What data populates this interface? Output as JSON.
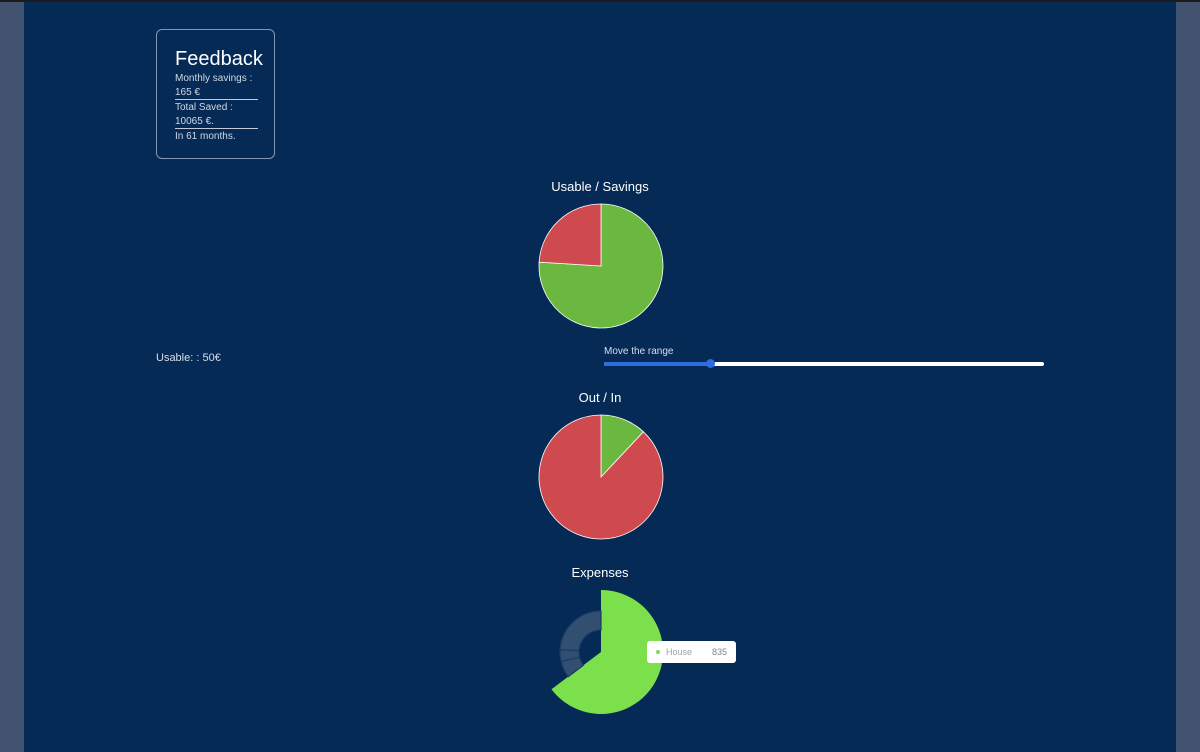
{
  "feedback": {
    "title": "Feedback",
    "monthly_savings_label": "Monthly savings :",
    "monthly_savings_value": "165 €",
    "total_saved_label": "Total Saved :",
    "total_saved_value": "10065 €.",
    "months_text": "In 61 months."
  },
  "usable": {
    "label": "Usable: : 50€"
  },
  "range": {
    "caption": "Move the range",
    "fraction": 0.24
  },
  "tooltip": {
    "name": "House",
    "value": "835",
    "color": "#7be04c"
  },
  "colors": {
    "green": "#6bb840",
    "red": "#cf4a4f",
    "accent": "#2d6de0",
    "background": "#052a56"
  },
  "chart_data": [
    {
      "type": "pie",
      "title": "Usable / Savings",
      "slices": [
        {
          "value": 76,
          "color": "#6bb840"
        },
        {
          "value": 24,
          "color": "#cf4a4f"
        }
      ]
    },
    {
      "type": "pie",
      "title": "Out / In",
      "slices": [
        {
          "value": 12,
          "color": "#6bb840"
        },
        {
          "value": 88,
          "color": "#cf4a4f"
        }
      ]
    },
    {
      "type": "doughnut",
      "title": "Expenses",
      "slices": [
        {
          "name": "House",
          "value": 835,
          "color": "#7be04c",
          "highlighted": true
        },
        {
          "value": 85,
          "color": "#3b5677"
        },
        {
          "value": 60,
          "color": "#3b5677"
        },
        {
          "value": 310,
          "color": "#3b5677"
        }
      ]
    }
  ]
}
